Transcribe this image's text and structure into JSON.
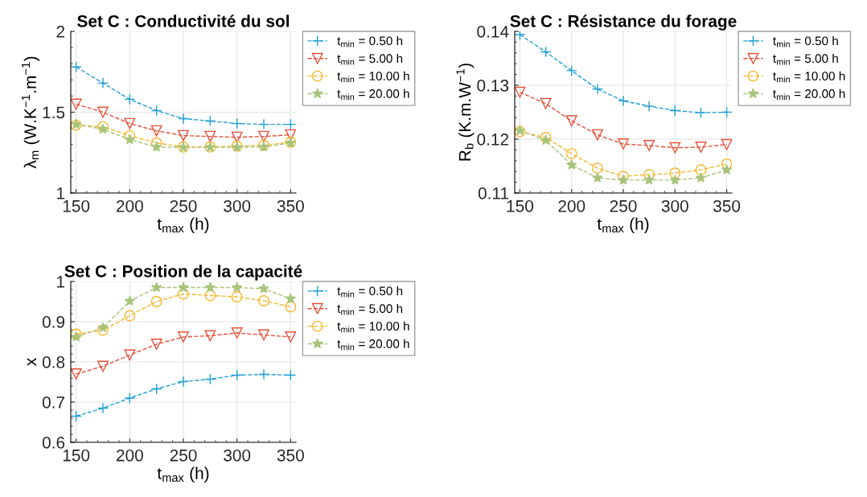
{
  "chart_data": [
    {
      "type": "line",
      "title": "Set C : Conductivité du sol",
      "xlabel": "t$_{max}$ (h)",
      "ylabel": "λ$_{m}$ (W.K$^{−1}$.m$^{−1}$)",
      "x": [
        150,
        175,
        200,
        225,
        250,
        275,
        300,
        325,
        350
      ],
      "xlim": [
        145,
        355
      ],
      "xticks": [
        150,
        200,
        250,
        300,
        350
      ],
      "ylim": [
        1,
        2
      ],
      "yticks": [
        1,
        1.5,
        2
      ],
      "grid": true,
      "legend": "top right",
      "line_style": "dashed",
      "series": [
        {
          "name": "t$_{min}$ = 0.50 h",
          "color": "#1f9fd3",
          "marker": "cross",
          "values": [
            1.78,
            1.68,
            1.58,
            1.51,
            1.46,
            1.445,
            1.43,
            1.425,
            1.425
          ]
        },
        {
          "name": "t$_{min}$ = 5.00 h",
          "color": "#e8513a",
          "marker": "triangle",
          "values": [
            1.55,
            1.5,
            1.43,
            1.385,
            1.355,
            1.35,
            1.345,
            1.35,
            1.36
          ]
        },
        {
          "name": "t$_{min}$ = 10.00 h",
          "color": "#f5b82e",
          "marker": "circle",
          "values": [
            1.42,
            1.41,
            1.355,
            1.31,
            1.285,
            1.285,
            1.29,
            1.295,
            1.315
          ]
        },
        {
          "name": "t$_{min}$ = 20.00 h",
          "color": "#a8c47c",
          "marker": "star",
          "values": [
            1.425,
            1.395,
            1.33,
            1.285,
            1.283,
            1.283,
            1.283,
            1.285,
            1.31
          ]
        }
      ]
    },
    {
      "type": "line",
      "title": "Set C : Résistance du forage",
      "xlabel": "t$_{max}$ (h)",
      "ylabel": "R$_{b}$ (K.m.W$^{−1}$)",
      "x": [
        150,
        175,
        200,
        225,
        250,
        275,
        300,
        325,
        350
      ],
      "xlim": [
        145,
        355
      ],
      "xticks": [
        150,
        200,
        250,
        300,
        350
      ],
      "ylim": [
        0.11,
        0.14
      ],
      "yticks": [
        0.11,
        0.12,
        0.13,
        0.14
      ],
      "grid": true,
      "legend": "top right",
      "line_style": "dashed",
      "series": [
        {
          "name": "t$_{min}$ = 0.50 h",
          "color": "#1f9fd3",
          "marker": "cross",
          "values": [
            0.1394,
            0.1362,
            0.1327,
            0.1293,
            0.1271,
            0.1261,
            0.1253,
            0.1249,
            0.125
          ]
        },
        {
          "name": "t$_{min}$ = 5.00 h",
          "color": "#e8513a",
          "marker": "triangle",
          "values": [
            0.1287,
            0.1266,
            0.1234,
            0.1208,
            0.1191,
            0.1188,
            0.1184,
            0.1185,
            0.119
          ]
        },
        {
          "name": "t$_{min}$ = 10.00 h",
          "color": "#f5b82e",
          "marker": "circle",
          "values": [
            0.1214,
            0.1203,
            0.1173,
            0.1146,
            0.1131,
            0.1134,
            0.1137,
            0.1143,
            0.1154
          ]
        },
        {
          "name": "t$_{min}$ = 20.00 h",
          "color": "#a8c47c",
          "marker": "star",
          "values": [
            0.1216,
            0.1198,
            0.1152,
            0.1128,
            0.1124,
            0.1124,
            0.1124,
            0.1128,
            0.1143
          ]
        }
      ]
    },
    {
      "type": "line",
      "title": "Set C : Position de la capacité",
      "xlabel": "t$_{max}$ (h)",
      "ylabel": "x",
      "x": [
        150,
        175,
        200,
        225,
        250,
        275,
        300,
        325,
        350
      ],
      "xlim": [
        145,
        355
      ],
      "xticks": [
        150,
        200,
        250,
        300,
        350
      ],
      "ylim": [
        0.6,
        1
      ],
      "yticks": [
        0.6,
        0.7,
        0.8,
        0.9,
        1
      ],
      "grid": true,
      "legend": "top right",
      "line_style": "dashed",
      "series": [
        {
          "name": "t$_{min}$ = 0.50 h",
          "color": "#1f9fd3",
          "marker": "cross",
          "values": [
            0.665,
            0.685,
            0.71,
            0.733,
            0.751,
            0.757,
            0.767,
            0.769,
            0.767
          ]
        },
        {
          "name": "t$_{min}$ = 5.00 h",
          "color": "#e8513a",
          "marker": "triangle",
          "values": [
            0.77,
            0.789,
            0.817,
            0.844,
            0.862,
            0.865,
            0.872,
            0.867,
            0.862
          ]
        },
        {
          "name": "t$_{min}$ = 10.00 h",
          "color": "#f5b82e",
          "marker": "circle",
          "values": [
            0.869,
            0.879,
            0.915,
            0.95,
            0.969,
            0.965,
            0.962,
            0.952,
            0.937
          ]
        },
        {
          "name": "t$_{min}$ = 20.00 h",
          "color": "#a8c47c",
          "marker": "star",
          "values": [
            0.862,
            0.885,
            0.951,
            0.985,
            0.985,
            0.985,
            0.985,
            0.982,
            0.957
          ]
        }
      ]
    }
  ]
}
